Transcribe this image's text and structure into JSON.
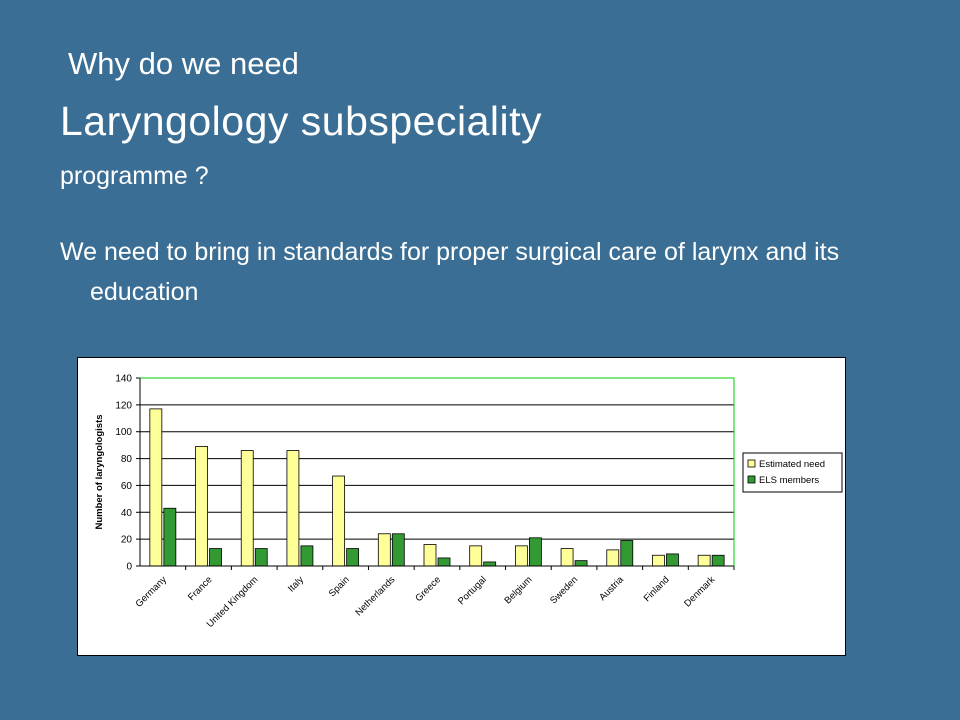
{
  "slide": {
    "title_line1": "Why do we need",
    "title_line2": "Laryngology subspeciality",
    "title_line3": "programme ?",
    "body": "We need to bring in standards for proper surgical care of larynx and its education"
  },
  "chart_data": {
    "type": "bar",
    "title": "",
    "xlabel": "",
    "ylabel": "Number of laryngologists",
    "ylim": [
      0,
      140
    ],
    "yticks": [
      0,
      20,
      40,
      60,
      80,
      100,
      120,
      140
    ],
    "grid": true,
    "legend_position": "right",
    "categories": [
      "Germany",
      "France",
      "United Kingdom",
      "Italy",
      "Spain",
      "Netherlands",
      "Greece",
      "Portugal",
      "Belgium",
      "Sweden",
      "Austria",
      "Finland",
      "Denmark"
    ],
    "series": [
      {
        "name": "Estimated need",
        "color": "#ffff99",
        "values": [
          117,
          89,
          86,
          86,
          67,
          24,
          16,
          15,
          15,
          13,
          12,
          8,
          8
        ]
      },
      {
        "name": "ELS members",
        "color": "#339933",
        "values": [
          43,
          13,
          13,
          15,
          13,
          24,
          6,
          3,
          21,
          4,
          19,
          9,
          8
        ]
      }
    ],
    "colors": {
      "plot_border": "#00cc00",
      "grid": "#000000",
      "bar_outline": "#000000"
    }
  }
}
